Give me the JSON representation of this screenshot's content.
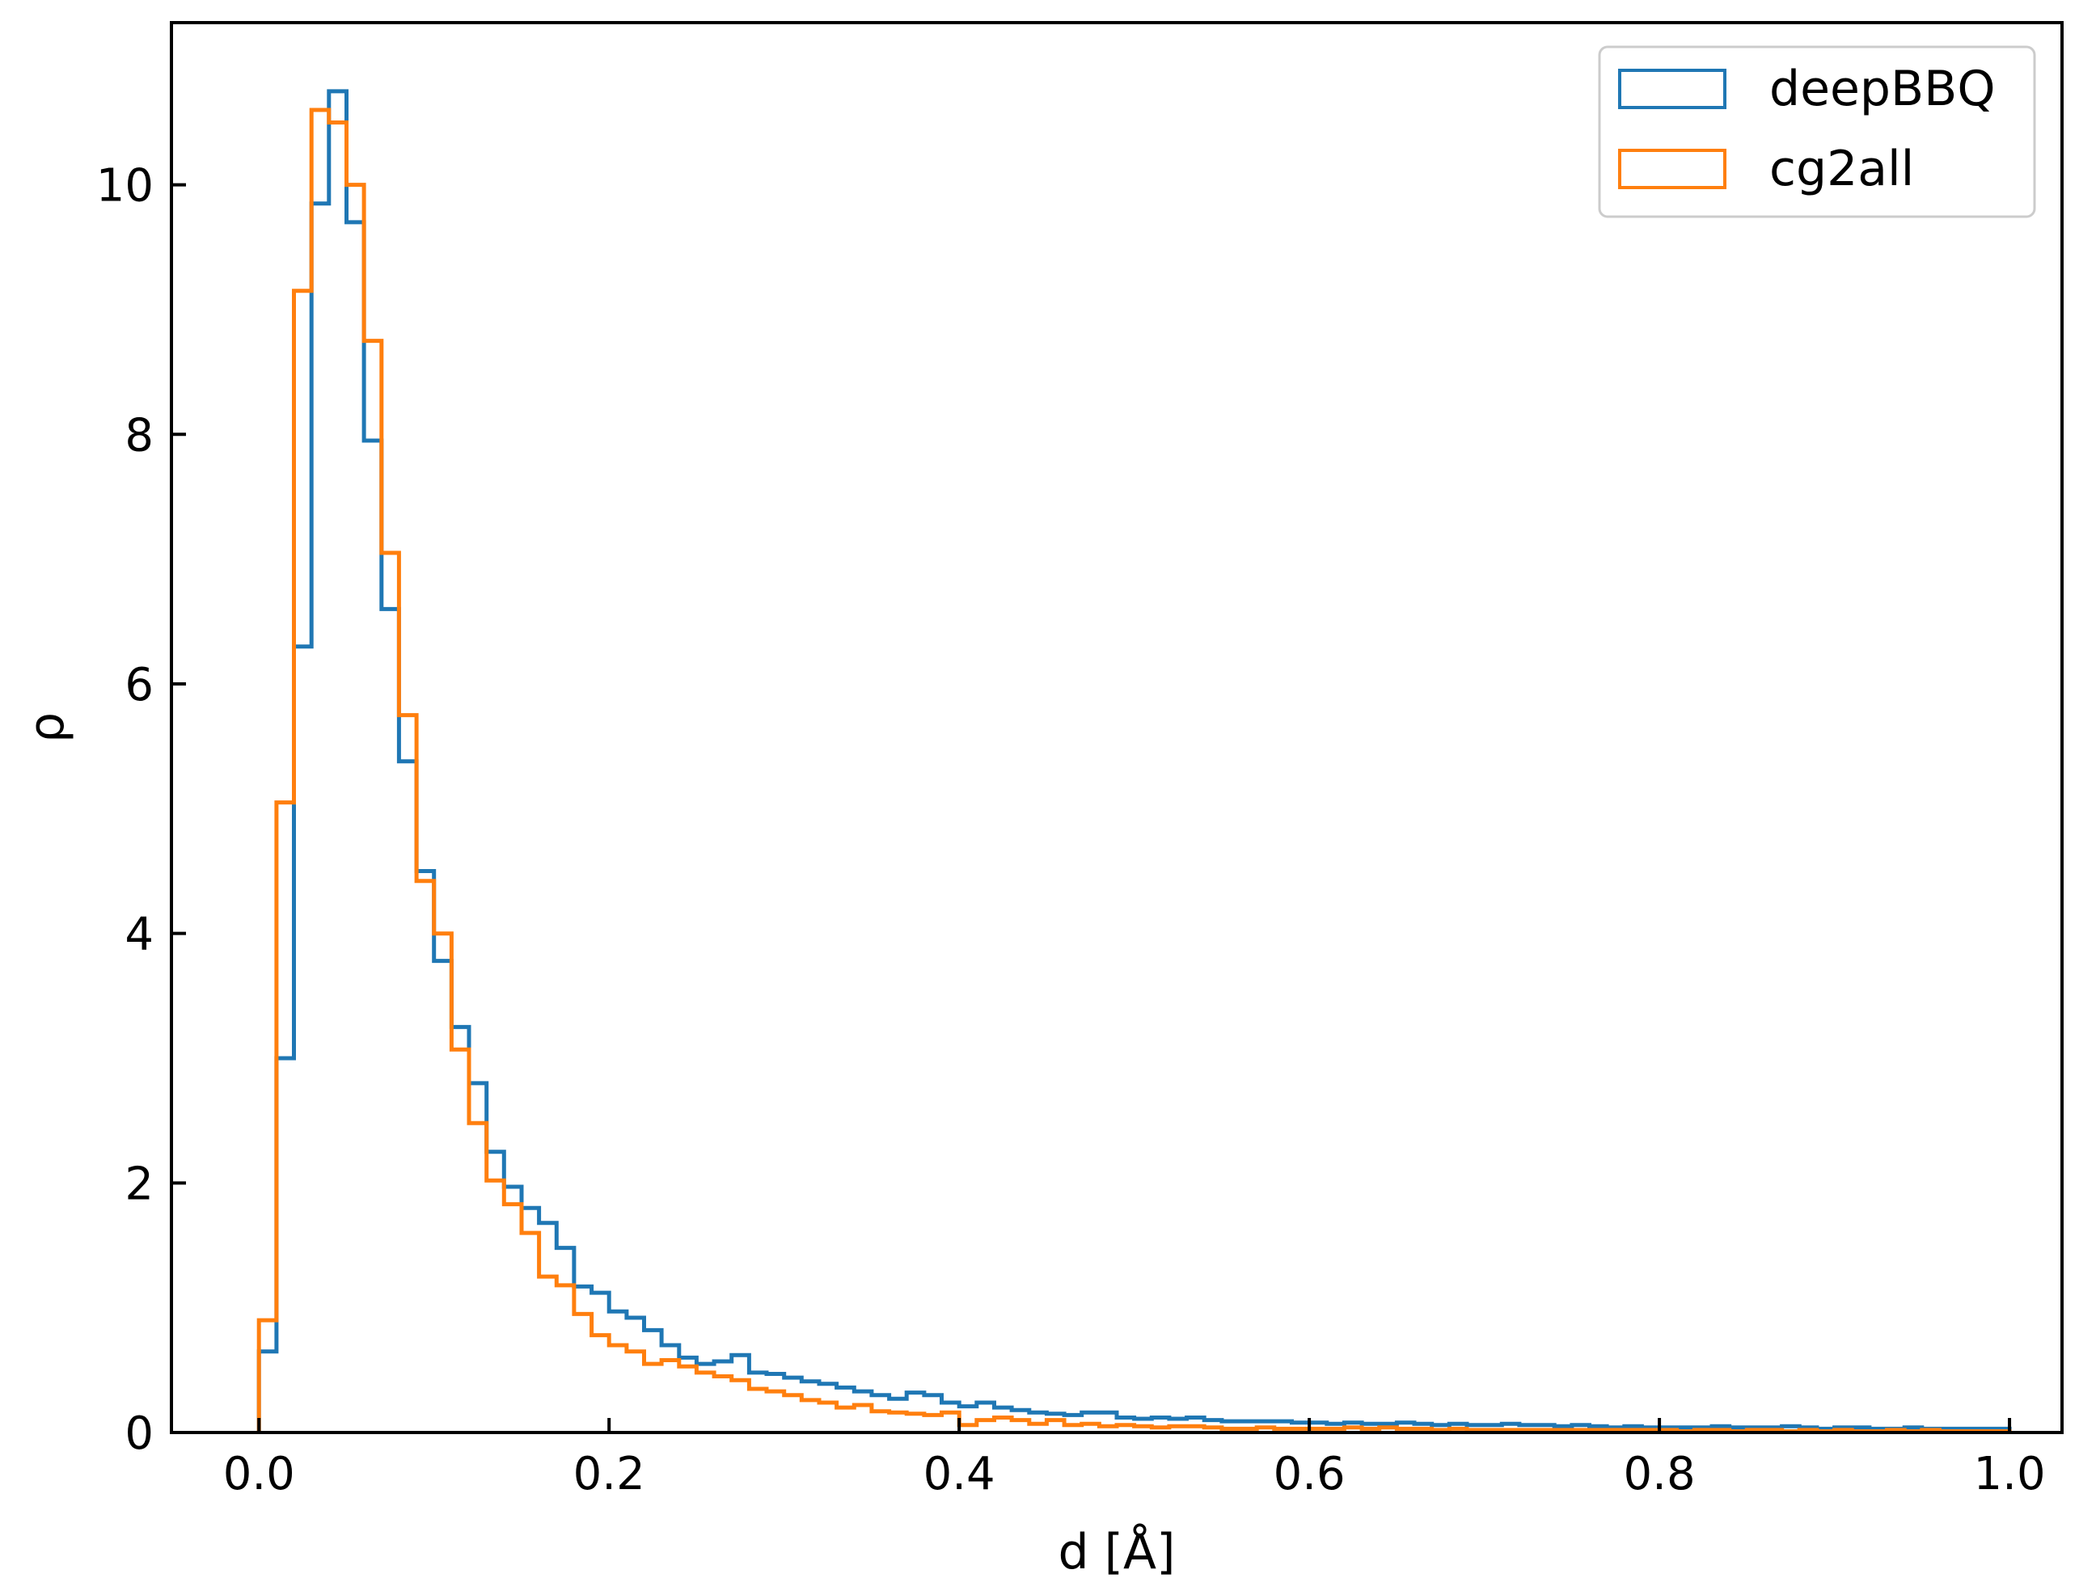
{
  "chart_data": {
    "type": "histogram",
    "xlabel": "d [Å]",
    "ylabel": "ρ",
    "xlim": [
      -0.05,
      1.03
    ],
    "ylim": [
      0,
      11.3
    ],
    "xticks": [
      "0.0",
      "0.2",
      "0.4",
      "0.6",
      "0.8",
      "1.0"
    ],
    "yticks": [
      "0",
      "2",
      "4",
      "6",
      "8",
      "10"
    ],
    "xtick_values": [
      0,
      0.2,
      0.4,
      0.6,
      0.8,
      1.0
    ],
    "ytick_values": [
      0,
      2,
      4,
      6,
      8,
      10
    ],
    "tick_direction": "in",
    "grid": false,
    "legend_position": "top-right",
    "histtype": "step",
    "bins": {
      "start": 0.0,
      "width": 0.01,
      "count": 100
    },
    "series": [
      {
        "name": "deepBBQ",
        "color": "#1f77b4",
        "values": [
          0.65,
          3.0,
          6.3,
          9.85,
          10.75,
          9.7,
          7.95,
          6.6,
          5.38,
          4.5,
          3.78,
          3.25,
          2.8,
          2.25,
          1.97,
          1.8,
          1.68,
          1.48,
          1.17,
          1.12,
          0.97,
          0.92,
          0.82,
          0.7,
          0.6,
          0.55,
          0.57,
          0.62,
          0.48,
          0.47,
          0.44,
          0.41,
          0.39,
          0.36,
          0.33,
          0.3,
          0.27,
          0.32,
          0.3,
          0.24,
          0.21,
          0.24,
          0.2,
          0.18,
          0.16,
          0.15,
          0.14,
          0.16,
          0.16,
          0.12,
          0.11,
          0.12,
          0.11,
          0.12,
          0.1,
          0.09,
          0.09,
          0.09,
          0.09,
          0.08,
          0.08,
          0.07,
          0.08,
          0.07,
          0.07,
          0.08,
          0.07,
          0.06,
          0.07,
          0.06,
          0.06,
          0.07,
          0.06,
          0.06,
          0.05,
          0.06,
          0.05,
          0.04,
          0.05,
          0.04,
          0.04,
          0.04,
          0.04,
          0.05,
          0.04,
          0.04,
          0.04,
          0.05,
          0.04,
          0.03,
          0.04,
          0.04,
          0.03,
          0.03,
          0.04,
          0.03,
          0.03,
          0.03,
          0.03,
          0.03
        ]
      },
      {
        "name": "cg2all",
        "color": "#ff7f0e",
        "values": [
          0.9,
          5.05,
          9.15,
          10.6,
          10.5,
          10.0,
          8.75,
          7.05,
          5.75,
          4.42,
          4.0,
          3.07,
          2.48,
          2.02,
          1.83,
          1.6,
          1.25,
          1.18,
          0.95,
          0.78,
          0.7,
          0.65,
          0.55,
          0.58,
          0.53,
          0.48,
          0.45,
          0.42,
          0.35,
          0.33,
          0.3,
          0.26,
          0.24,
          0.2,
          0.22,
          0.17,
          0.16,
          0.15,
          0.14,
          0.16,
          0.06,
          0.1,
          0.12,
          0.1,
          0.07,
          0.1,
          0.06,
          0.07,
          0.05,
          0.06,
          0.05,
          0.04,
          0.05,
          0.05,
          0.04,
          0.03,
          0.03,
          0.04,
          0.03,
          0.03,
          0.03,
          0.03,
          0.04,
          0.03,
          0.04,
          0.03,
          0.03,
          0.02,
          0.03,
          0.02,
          0.02,
          0.02,
          0.02,
          0.02,
          0.02,
          0.02,
          0.02,
          0.02,
          0.02,
          0.02,
          0.02,
          0.01,
          0.02,
          0.02,
          0.01,
          0.02,
          0.02,
          0.01,
          0.02,
          0.01,
          0.02,
          0.01,
          0.01,
          0.02,
          0.01,
          0.02,
          0.01,
          0.01,
          0.01,
          0.01
        ]
      }
    ]
  }
}
